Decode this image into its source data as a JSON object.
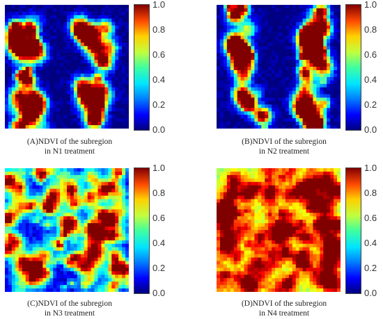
{
  "chart_data": [
    {
      "type": "heatmap",
      "caption_line1": "(A)NDVI of the subregion",
      "caption_line2": "in N1 treatment",
      "colorbar_ticks": [
        "1.0",
        "0.8",
        "0.6",
        "0.4",
        "0.2",
        "0.0"
      ],
      "colorbar_range": [
        0.0,
        1.0
      ],
      "colormap": "jet",
      "vegetation_cover": "sparse"
    },
    {
      "type": "heatmap",
      "caption_line1": "(B)NDVI of the subregion",
      "caption_line2": "in N2 treatment",
      "colorbar_ticks": [
        "1.0",
        "0.8",
        "0.6",
        "0.4",
        "0.2",
        "0.0"
      ],
      "colorbar_range": [
        0.0,
        1.0
      ],
      "colormap": "jet",
      "vegetation_cover": "sparse"
    },
    {
      "type": "heatmap",
      "caption_line1": "(C)NDVI of the subregion",
      "caption_line2": "in N3 treatment",
      "colorbar_ticks": [
        "1.0",
        "0.8",
        "0.6",
        "0.4",
        "0.2",
        "0.0"
      ],
      "colorbar_range": [
        0.0,
        1.0
      ],
      "colormap": "jet",
      "vegetation_cover": "moderate"
    },
    {
      "type": "heatmap",
      "caption_line1": "(D)NDVI of the subregion",
      "caption_line2": "in N4 treatment",
      "colorbar_ticks": [
        "1.0",
        "0.8",
        "0.6",
        "0.4",
        "0.2",
        "0.0"
      ],
      "colorbar_range": [
        0.0,
        1.0
      ],
      "colormap": "jet",
      "vegetation_cover": "dense"
    }
  ]
}
